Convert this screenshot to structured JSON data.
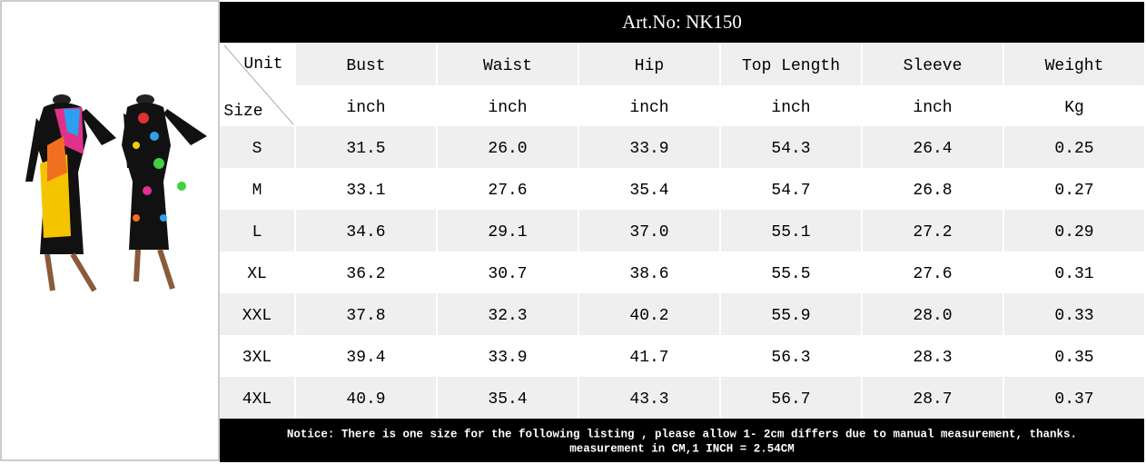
{
  "title": "Art.No: NK150",
  "header": {
    "unit": "Unit",
    "size": "Size",
    "columns": [
      "Bust",
      "Waist",
      "Hip",
      "Top Length",
      "Sleeve",
      "Weight"
    ]
  },
  "units": [
    "inch",
    "inch",
    "inch",
    "inch",
    "inch",
    "Kg"
  ],
  "table": {
    "rows": [
      [
        "S",
        "31.5",
        "26.0",
        "33.9",
        "54.3",
        "26.4",
        "0.25"
      ],
      [
        "M",
        "33.1",
        "27.6",
        "35.4",
        "54.7",
        "26.8",
        "0.27"
      ],
      [
        "L",
        "34.6",
        "29.1",
        "37.0",
        "55.1",
        "27.2",
        "0.29"
      ],
      [
        "XL",
        "36.2",
        "30.7",
        "38.6",
        "55.5",
        "27.6",
        "0.31"
      ],
      [
        "XXL",
        "37.8",
        "32.3",
        "40.2",
        "55.9",
        "28.0",
        "0.33"
      ],
      [
        "3XL",
        "39.4",
        "33.9",
        "41.7",
        "56.3",
        "28.3",
        "0.35"
      ],
      [
        "4XL",
        "40.9",
        "35.4",
        "43.3",
        "56.7",
        "28.7",
        "0.37"
      ]
    ]
  },
  "notice": [
    "Notice: There is one size for the following listing , please allow 1- 2cm differs due to manual measurement, thanks.",
    "measurement in CM,1 INCH = 2.54CM"
  ]
}
